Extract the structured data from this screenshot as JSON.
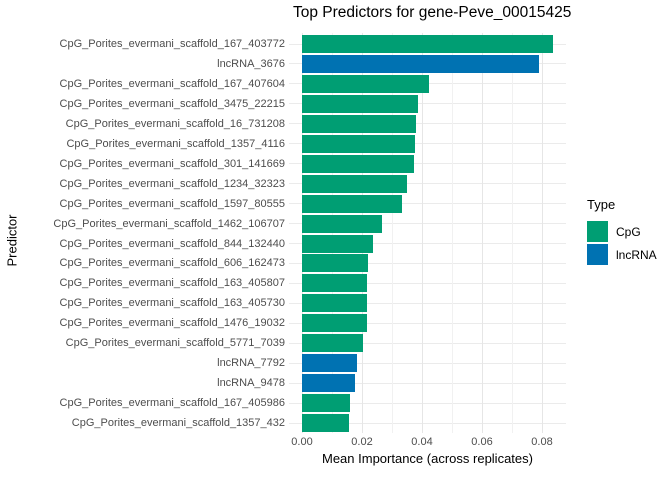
{
  "title": "Top Predictors for gene-Peve_00015425",
  "axes": {
    "x_label": "Mean Importance (across replicates)",
    "y_label": "Predictor"
  },
  "legend": {
    "title": "Type",
    "items": [
      {
        "label": "CpG",
        "color": "#009E73"
      },
      {
        "label": "lncRNA",
        "color": "#0072B2"
      }
    ]
  },
  "colors": {
    "cpg": "#009E73",
    "lncrna": "#0072B2",
    "grid_major": "#e6e6e6",
    "grid_minor": "#f1f1f1",
    "grid_row": "#ebebeb",
    "axis_text": "#4d4d4d",
    "background": "#ffffff"
  },
  "chart_data": {
    "type": "bar",
    "orientation": "horizontal",
    "title": "Top Predictors for gene-Peve_00015425",
    "xlabel": "Mean Importance (across replicates)",
    "ylabel": "Predictor",
    "xlim": [
      0,
      0.088
    ],
    "x_ticks": [
      0.0,
      0.02,
      0.04,
      0.06,
      0.08
    ],
    "x_minor_ticks": [
      0.01,
      0.03,
      0.05,
      0.07
    ],
    "grid": true,
    "legend_title": "Type",
    "legend_position": "right",
    "groups": {
      "CpG": "#009E73",
      "lncRNA": "#0072B2"
    },
    "bars": [
      {
        "label": "CpG_Porites_evermani_scaffold_167_403772",
        "group": "CpG",
        "value": 0.0835
      },
      {
        "label": "lncRNA_3676",
        "group": "lncRNA",
        "value": 0.079
      },
      {
        "label": "CpG_Porites_evermani_scaffold_167_407604",
        "group": "CpG",
        "value": 0.0423
      },
      {
        "label": "CpG_Porites_evermani_scaffold_3475_22215",
        "group": "CpG",
        "value": 0.0387
      },
      {
        "label": "CpG_Porites_evermani_scaffold_16_731208",
        "group": "CpG",
        "value": 0.038
      },
      {
        "label": "CpG_Porites_evermani_scaffold_1357_4116",
        "group": "CpG",
        "value": 0.0377
      },
      {
        "label": "CpG_Porites_evermani_scaffold_301_141669",
        "group": "CpG",
        "value": 0.0373
      },
      {
        "label": "CpG_Porites_evermani_scaffold_1234_32323",
        "group": "CpG",
        "value": 0.035
      },
      {
        "label": "CpG_Porites_evermani_scaffold_1597_80555",
        "group": "CpG",
        "value": 0.0333
      },
      {
        "label": "CpG_Porites_evermani_scaffold_1462_106707",
        "group": "CpG",
        "value": 0.0267
      },
      {
        "label": "CpG_Porites_evermani_scaffold_844_132440",
        "group": "CpG",
        "value": 0.0237
      },
      {
        "label": "CpG_Porites_evermani_scaffold_606_162473",
        "group": "CpG",
        "value": 0.022
      },
      {
        "label": "CpG_Porites_evermani_scaffold_163_405807",
        "group": "CpG",
        "value": 0.0217
      },
      {
        "label": "CpG_Porites_evermani_scaffold_163_405730",
        "group": "CpG",
        "value": 0.0217
      },
      {
        "label": "CpG_Porites_evermani_scaffold_1476_19032",
        "group": "CpG",
        "value": 0.0215
      },
      {
        "label": "CpG_Porites_evermani_scaffold_5771_7039",
        "group": "CpG",
        "value": 0.0203
      },
      {
        "label": "lncRNA_7792",
        "group": "lncRNA",
        "value": 0.0183
      },
      {
        "label": "lncRNA_9478",
        "group": "lncRNA",
        "value": 0.0177
      },
      {
        "label": "CpG_Porites_evermani_scaffold_167_405986",
        "group": "CpG",
        "value": 0.016
      },
      {
        "label": "CpG_Porites_evermani_scaffold_1357_432",
        "group": "CpG",
        "value": 0.0155
      }
    ]
  }
}
